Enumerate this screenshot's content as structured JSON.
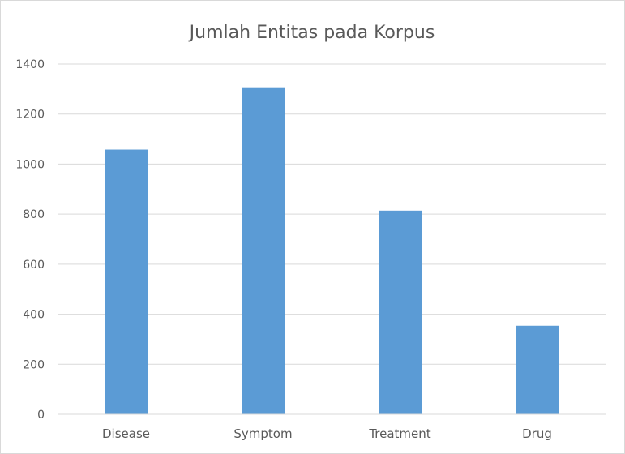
{
  "chart_data": {
    "type": "bar",
    "title": "Jumlah Entitas pada Korpus",
    "xlabel": "",
    "ylabel": "",
    "categories": [
      "Disease",
      "Symptom",
      "Treatment",
      "Drug"
    ],
    "values": [
      1058,
      1307,
      814,
      354
    ],
    "ylim": [
      0,
      1400
    ],
    "yticks": [
      0,
      200,
      400,
      600,
      800,
      1000,
      1200,
      1400
    ],
    "grid": true,
    "legend": "none",
    "bar_color": "#5b9bd5"
  }
}
